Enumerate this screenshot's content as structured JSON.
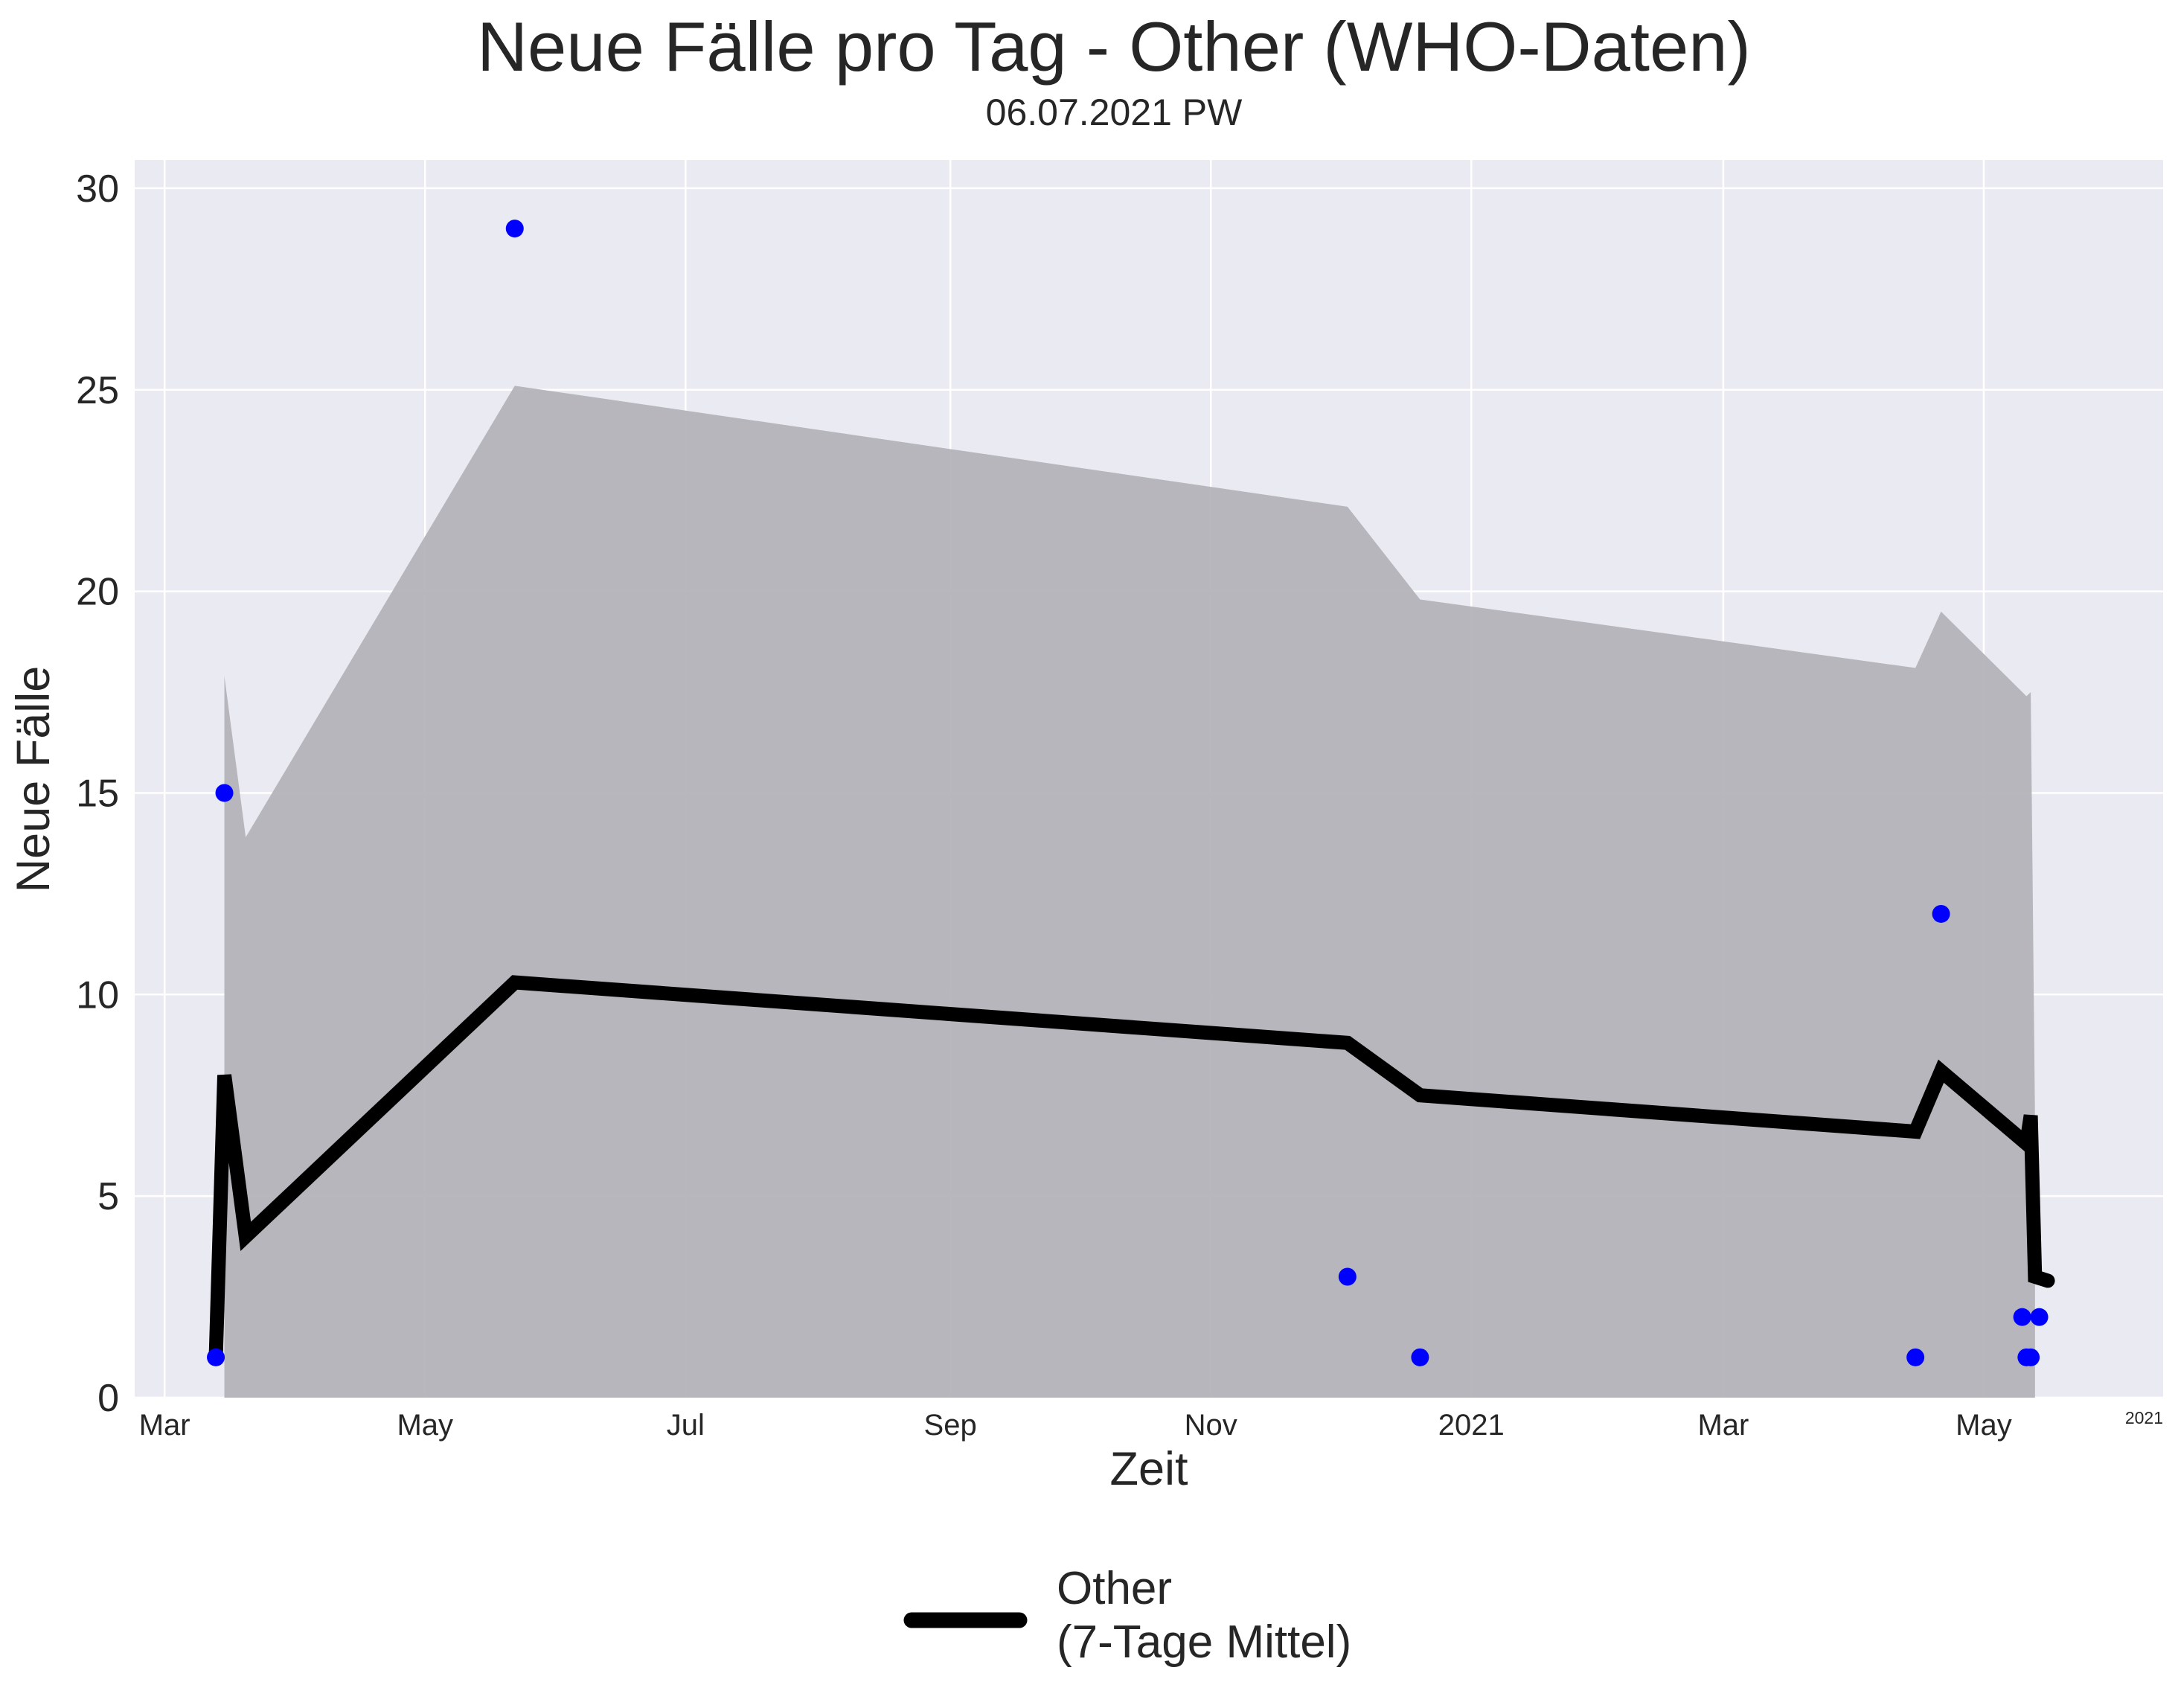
{
  "chart_data": {
    "type": "line",
    "title": "Neue Fälle pro Tag - Other (WHO-Daten)",
    "subtitle": "06.07.2021 PW",
    "xlabel": "Zeit",
    "ylabel": "Neue Fälle",
    "x_offset_label": "2021",
    "ylim": [
      0,
      30.7
    ],
    "xlim": [
      "2020-02-23",
      "2021-06-12"
    ],
    "grid": true,
    "legend_position": "bottom-center",
    "x_ticks": [
      {
        "date": "2020-03-01",
        "label": "Mar"
      },
      {
        "date": "2020-05-01",
        "label": "May"
      },
      {
        "date": "2020-07-01",
        "label": "Jul"
      },
      {
        "date": "2020-09-01",
        "label": "Sep"
      },
      {
        "date": "2020-11-01",
        "label": "Nov"
      },
      {
        "date": "2021-01-01",
        "label": "2021"
      },
      {
        "date": "2021-03-01",
        "label": "Mar"
      },
      {
        "date": "2021-05-01",
        "label": "May"
      }
    ],
    "y_ticks": [
      0,
      5,
      10,
      15,
      20,
      25,
      30
    ],
    "series": [
      {
        "name": "Other\n(7-Tage Mittel)",
        "kind": "line",
        "color": "#000000",
        "points": [
          {
            "x": "2020-03-13",
            "y": 1.0
          },
          {
            "x": "2020-03-15",
            "y": 8.0
          },
          {
            "x": "2020-03-20",
            "y": 4.0
          },
          {
            "x": "2020-05-22",
            "y": 10.3
          },
          {
            "x": "2020-12-03",
            "y": 8.8
          },
          {
            "x": "2020-12-20",
            "y": 7.5
          },
          {
            "x": "2021-04-15",
            "y": 6.6
          },
          {
            "x": "2021-04-21",
            "y": 8.1
          },
          {
            "x": "2021-05-11",
            "y": 6.3
          },
          {
            "x": "2021-05-12",
            "y": 7.0
          },
          {
            "x": "2021-05-13",
            "y": 3.0
          },
          {
            "x": "2021-05-16",
            "y": 2.9
          }
        ]
      },
      {
        "kind": "scatter",
        "color": "#0000ff",
        "points": [
          {
            "x": "2020-03-13",
            "y": 1
          },
          {
            "x": "2020-03-15",
            "y": 15
          },
          {
            "x": "2020-05-22",
            "y": 29
          },
          {
            "x": "2020-12-03",
            "y": 3
          },
          {
            "x": "2020-12-20",
            "y": 1
          },
          {
            "x": "2021-04-15",
            "y": 1
          },
          {
            "x": "2021-04-21",
            "y": 12
          },
          {
            "x": "2021-05-10",
            "y": 2
          },
          {
            "x": "2021-05-11",
            "y": 1
          },
          {
            "x": "2021-05-12",
            "y": 1
          },
          {
            "x": "2021-05-14",
            "y": 2
          }
        ]
      }
    ],
    "band": {
      "color": "#b3b3b8",
      "lower": 0,
      "upper": [
        {
          "x": "2020-03-15",
          "y": 17.9
        },
        {
          "x": "2020-03-20",
          "y": 13.9
        },
        {
          "x": "2020-05-22",
          "y": 25.1
        },
        {
          "x": "2020-12-03",
          "y": 22.1
        },
        {
          "x": "2020-12-20",
          "y": 19.8
        },
        {
          "x": "2021-04-15",
          "y": 18.1
        },
        {
          "x": "2021-04-21",
          "y": 19.5
        },
        {
          "x": "2021-05-11",
          "y": 17.4
        },
        {
          "x": "2021-05-12",
          "y": 17.5
        },
        {
          "x": "2021-05-13",
          "y": 6.9
        }
      ]
    }
  }
}
